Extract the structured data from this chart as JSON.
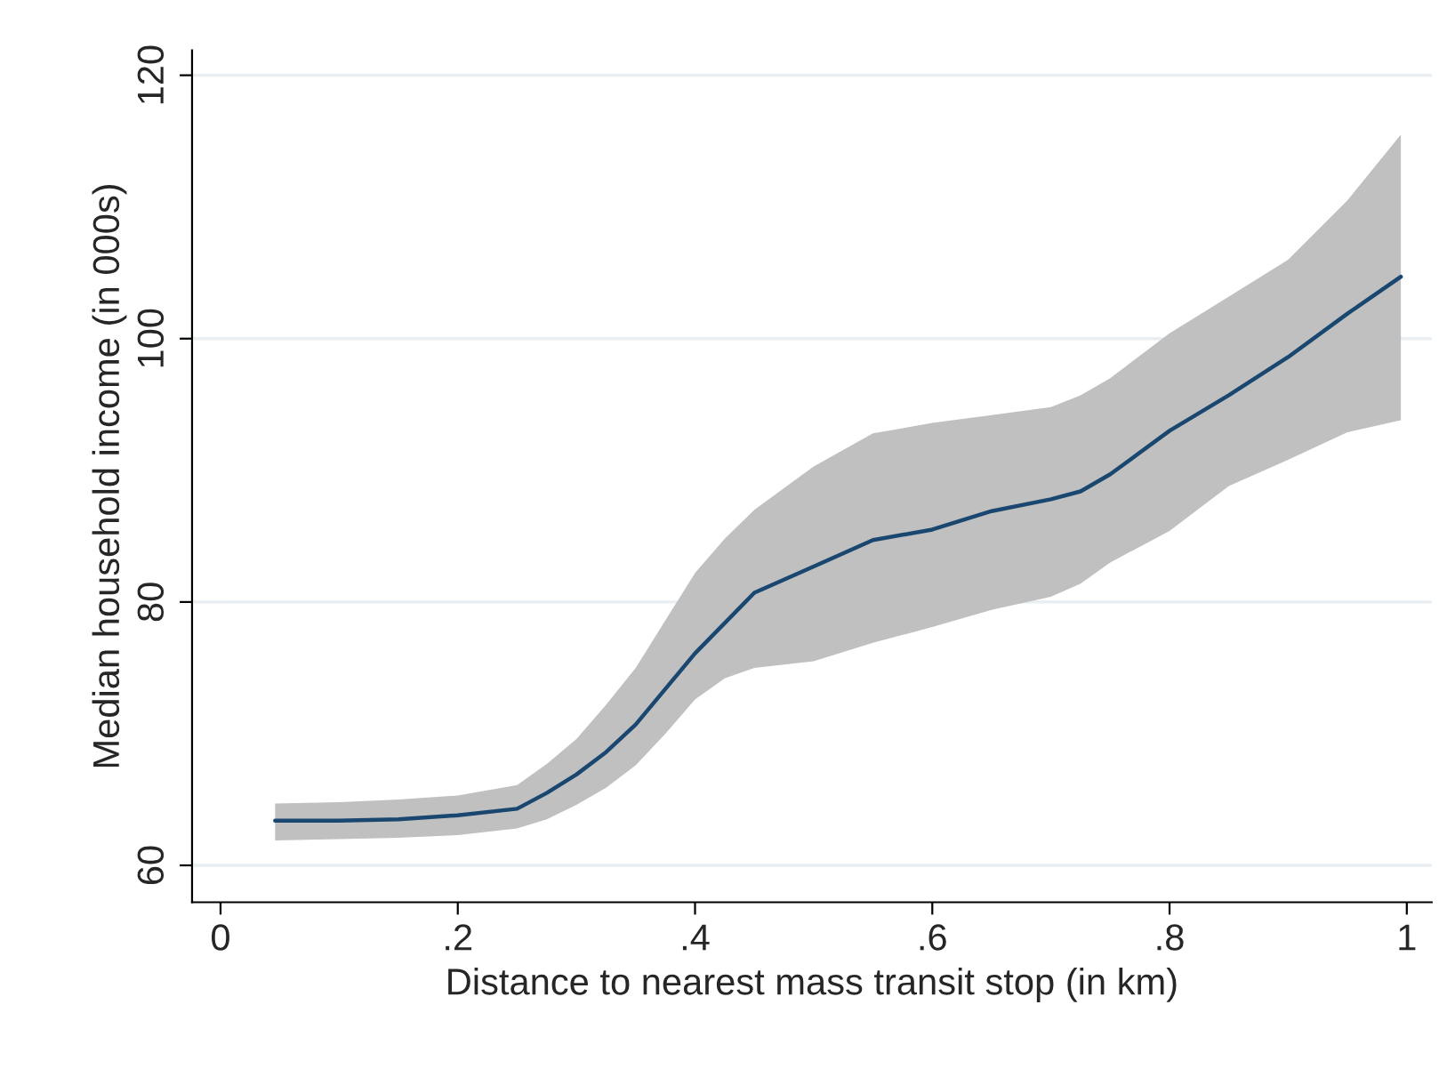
{
  "chart_data": {
    "type": "line",
    "xlabel": "Distance to nearest mass transit stop (in km)",
    "ylabel": "Median household income (in 000s)",
    "x": [
      0.046,
      0.1,
      0.15,
      0.2,
      0.25,
      0.275,
      0.3,
      0.325,
      0.35,
      0.375,
      0.4,
      0.425,
      0.45,
      0.5,
      0.55,
      0.6,
      0.65,
      0.7,
      0.725,
      0.75,
      0.8,
      0.85,
      0.9,
      0.95,
      0.995
    ],
    "series": [
      {
        "color": "#1a476f",
        "values": [
          63.4,
          63.4,
          63.5,
          63.8,
          64.3,
          65.5,
          66.9,
          68.6,
          70.7,
          73.4,
          76.1,
          78.4,
          80.7,
          82.7,
          84.7,
          85.5,
          86.9,
          87.8,
          88.4,
          89.7,
          93,
          95.7,
          98.6,
          101.9,
          104.7
        ],
        "upper": [
          64.7,
          64.8,
          65,
          65.3,
          66.1,
          67.7,
          69.6,
          72.2,
          75,
          78.6,
          82.2,
          84.8,
          87,
          90.3,
          92.8,
          93.6,
          94.2,
          94.8,
          95.7,
          97,
          100.4,
          103.2,
          106,
          110.5,
          115.5
        ],
        "lower": [
          61.9,
          62,
          62.1,
          62.3,
          62.8,
          63.5,
          64.6,
          65.9,
          67.6,
          70,
          72.6,
          74.2,
          75,
          75.5,
          76.9,
          78.1,
          79.4,
          80.4,
          81.4,
          83,
          85.4,
          88.8,
          90.8,
          92.9,
          93.8
        ]
      }
    ],
    "xlim": [
      -0.024,
      1.021
    ],
    "ylim": [
      57.2,
      121.9
    ],
    "xticks": [
      0,
      {
        "value": 0.2,
        "label": ".2"
      },
      {
        "value": 0.4,
        "label": ".4"
      },
      {
        "value": 0.6,
        "label": ".6"
      },
      {
        "value": 0.8,
        "label": ".8"
      },
      1
    ],
    "yticks": [
      60,
      80,
      100,
      120
    ],
    "grid": "y",
    "legend": false,
    "marker": "none",
    "line_style": "solid"
  }
}
